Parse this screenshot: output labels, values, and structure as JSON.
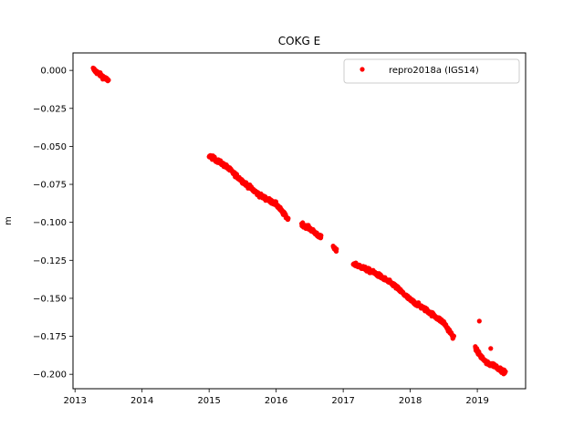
{
  "colors": {
    "series": "#ff0000",
    "axes": "#000000",
    "background": "#ffffff"
  },
  "chart_data": {
    "type": "scatter",
    "title": "COKG E",
    "xlabel": "",
    "ylabel": "m",
    "xlim": [
      2012.97,
      2019.72
    ],
    "ylim": [
      -0.2095,
      0.0115
    ],
    "x_ticks": [
      2013,
      2014,
      2015,
      2016,
      2017,
      2018,
      2019
    ],
    "x_tick_labels": [
      "2013",
      "2014",
      "2015",
      "2016",
      "2017",
      "2018",
      "2019"
    ],
    "y_ticks": [
      0.0,
      -0.025,
      -0.05,
      -0.075,
      -0.1,
      -0.125,
      -0.15,
      -0.175,
      -0.2
    ],
    "y_tick_labels": [
      "0.000",
      "−0.025",
      "−0.050",
      "−0.075",
      "−0.100",
      "−0.125",
      "−0.150",
      "−0.175",
      "−0.200"
    ],
    "grid": false,
    "legend": {
      "position": "top-right",
      "entries": [
        "repro2018a (IGS14)"
      ]
    },
    "series": [
      {
        "name": "repro2018a (IGS14)",
        "color": "#ff0000",
        "marker": "circle",
        "segments": [
          {
            "x": [
              2013.27,
              2013.32,
              2013.38,
              2013.44,
              2013.5
            ],
            "y": [
              0.001,
              -0.001,
              -0.003,
              -0.005,
              -0.007
            ]
          },
          {
            "x": [
              2015.0,
              2015.25,
              2015.5,
              2015.75,
              2016.0,
              2016.18
            ],
            "y": [
              -0.056,
              -0.063,
              -0.073,
              -0.082,
              -0.088,
              -0.098
            ]
          },
          {
            "x": [
              2016.38,
              2016.5,
              2016.67
            ],
            "y": [
              -0.101,
              -0.104,
              -0.11
            ]
          },
          {
            "x": [
              2016.85,
              2016.9
            ],
            "y": [
              -0.116,
              -0.119
            ]
          },
          {
            "x": [
              2017.15,
              2017.5,
              2017.75,
              2018.0,
              2018.25,
              2018.5,
              2018.65
            ],
            "y": [
              -0.127,
              -0.134,
              -0.141,
              -0.151,
              -0.158,
              -0.166,
              -0.176
            ]
          },
          {
            "x": [
              2018.97,
              2019.05,
              2019.15,
              2019.25,
              2019.35,
              2019.42
            ],
            "y": [
              -0.183,
              -0.188,
              -0.193,
              -0.194,
              -0.197,
              -0.199
            ]
          }
        ],
        "outliers": {
          "x": [
            2019.03,
            2019.2
          ],
          "y": [
            -0.165,
            -0.183
          ]
        }
      }
    ]
  }
}
